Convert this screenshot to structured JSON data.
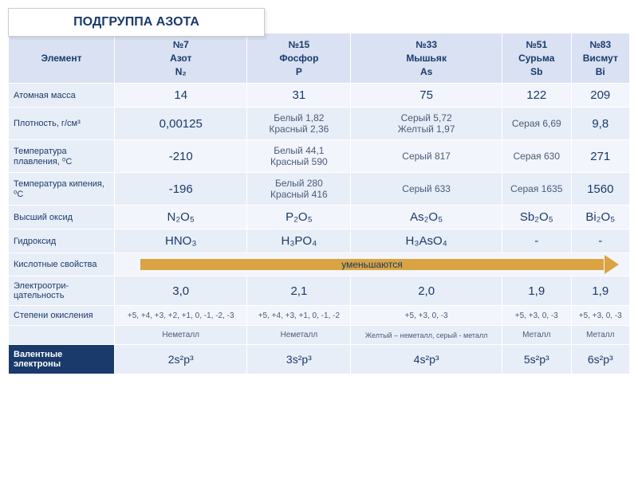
{
  "title": "ПОДГРУППА   АЗОТА",
  "headers": {
    "element": "Элемент",
    "n": {
      "num": "№7",
      "name": "Азот",
      "sym": "N₂"
    },
    "p": {
      "num": "№15",
      "name": "Фосфор",
      "sym": "P"
    },
    "as": {
      "num": "№33",
      "name": "Мышьяк",
      "sym": "As"
    },
    "sb": {
      "num": "№51",
      "name": "Сурьма",
      "sym": "Sb"
    },
    "bi": {
      "num": "№83",
      "name": "Висмут",
      "sym": "Bi"
    }
  },
  "rows": {
    "mass": {
      "label": "Атомная масса",
      "n": "14",
      "p": "31",
      "as": "75",
      "sb": "122",
      "bi": "209"
    },
    "density": {
      "label": "Плотность,  г/см³",
      "n": "0,00125",
      "p": "Белый  1,82\nКрасный  2,36",
      "as": "Серый  5,72\nЖелтый  1,97",
      "sb": "Серая  6,69",
      "bi": "9,8"
    },
    "melt": {
      "label": "Температура плавления, ⁰С",
      "n": "-210",
      "p": "Белый  44,1\nКрасный  590",
      "as": "Серый  817",
      "sb": "Серая  630",
      "bi": "271"
    },
    "boil": {
      "label": "Температура кипения, ⁰С",
      "n": "-196",
      "p": "Белый   280\nКрасный  416",
      "as": "Серый  633",
      "sb": "Серая  1635",
      "bi": "1560"
    },
    "oxide": {
      "label": "Высший оксид",
      "n": "N₂O₅",
      "p": "P₂O₅",
      "as": "As₂O₅",
      "sb": "Sb₂O₅",
      "bi": "Bi₂O₅"
    },
    "hydroxide": {
      "label": "Гидроксид",
      "n": "HNO₃",
      "p": "H₃PO₄",
      "as": "H₃AsO₄",
      "sb": "-",
      "bi": "-"
    },
    "acid": {
      "label": "Кислотные свойства",
      "arrow": "уменьшаются"
    },
    "electroneg": {
      "label": "Электроотри-цательность",
      "n": "3,0",
      "p": "2,1",
      "as": "2,0",
      "sb": "1,9",
      "bi": "1,9"
    },
    "oxstate": {
      "label": "Степени окисления",
      "n": "+5, +4, +3, +2, +1, 0, -1, -2, -3",
      "p": "+5, +4, +3, +1, 0, -1, -2",
      "as": "+5, +3, 0, -3",
      "sb": "+5, +3,  0,  -3",
      "bi": "+5, +3,  0,  -3"
    },
    "metal": {
      "label": "",
      "n": "Неметалл",
      "p": "Неметалл",
      "as": "Желтый – неметалл, серый - металл",
      "sb": "Металл",
      "bi": "Металл"
    },
    "valence": {
      "label": "Валентные электроны",
      "n": "2s²p³",
      "p": "3s²p³",
      "as": "4s²p³",
      "sb": "5s²p³",
      "bi": "6s²p³"
    }
  }
}
